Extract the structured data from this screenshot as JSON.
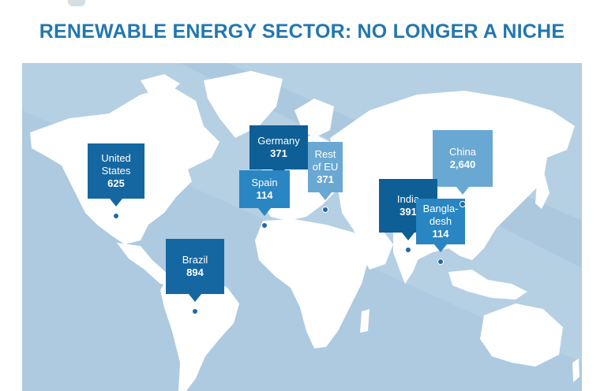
{
  "title": "RENEWABLE ENERGY SECTOR: NO LONGER A NICHE",
  "colors": {
    "title": "#2277b0",
    "ocean": "#b5cfe3",
    "land": "#ffffff",
    "marker_dark": "#0e5f96",
    "marker_mid": "#2a86c2",
    "marker_light": "#6aa8d4"
  },
  "markers": [
    {
      "id": "united-states",
      "label_lines": [
        "United",
        "States"
      ],
      "value": "625",
      "color": "#1567a2"
    },
    {
      "id": "brazil",
      "label_lines": [
        "Brazil"
      ],
      "value": "894",
      "color": "#1567a2"
    },
    {
      "id": "germany",
      "label_lines": [
        "Germany"
      ],
      "value": "371",
      "color": "#0e5f96"
    },
    {
      "id": "spain",
      "label_lines": [
        "Spain"
      ],
      "value": "114",
      "color": "#2a86c2"
    },
    {
      "id": "rest-of-eu",
      "label_lines": [
        "Rest",
        "of EU"
      ],
      "value": "371",
      "color": "#6aa8d4"
    },
    {
      "id": "china",
      "label_lines": [
        "China"
      ],
      "value": "2,640",
      "color": "#6aa8d4"
    },
    {
      "id": "india",
      "label_lines": [
        "India"
      ],
      "value": "391",
      "color": "#0e5f96"
    },
    {
      "id": "bangladesh",
      "label_lines": [
        "Bangla-",
        "desh"
      ],
      "value": "114",
      "color": "#2a86c2"
    }
  ]
}
